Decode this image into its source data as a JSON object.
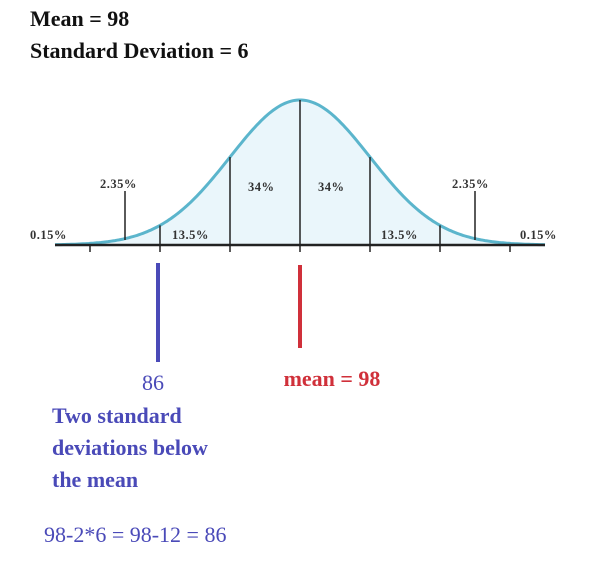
{
  "header": {
    "mean": "Mean = 98",
    "sd": "Standard Deviation = 6"
  },
  "curve": {
    "labels": [
      "0.15%",
      "2.35%",
      "13.5%",
      "34%",
      "34%",
      "13.5%",
      "2.35%",
      "0.15%"
    ]
  },
  "markers": {
    "low": "86",
    "mean": "mean = 98"
  },
  "explanation": {
    "lines": [
      "Two standard",
      "deviations below",
      "the mean"
    ],
    "formula": "98-2*6 = 98-12 = 86"
  }
}
